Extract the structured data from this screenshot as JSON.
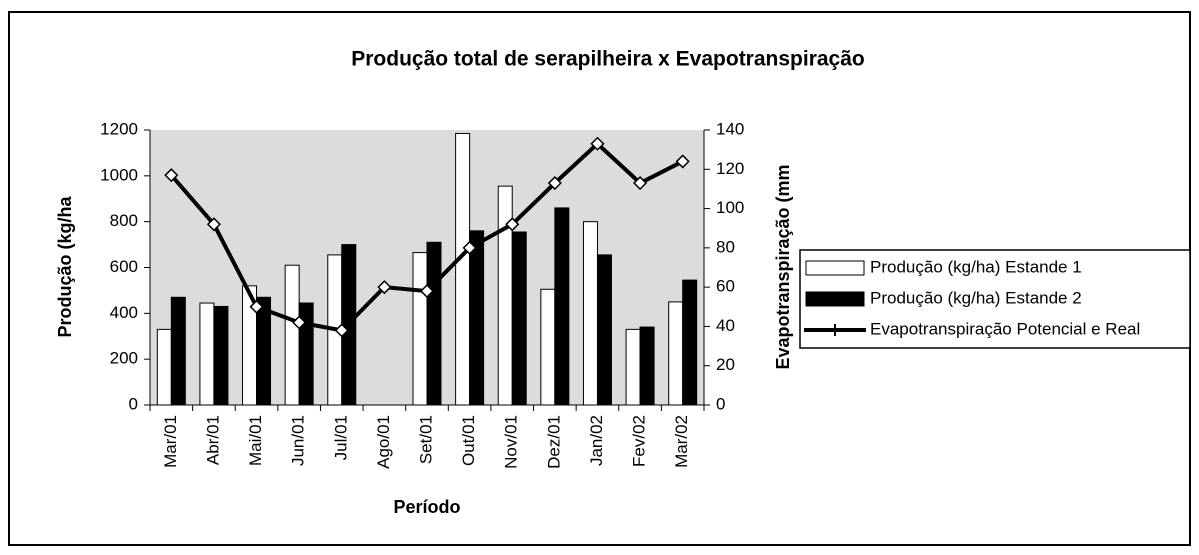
{
  "chart_data": {
    "type": "bar_line",
    "title": "Produção total de serapilheira x Evapotranspiração",
    "x_label": "Período",
    "y_label": "Produção (kg/ha",
    "y2_label": "Evapotranspiração (mm",
    "categories": [
      "Mar/01",
      "Abr/01",
      "Mai/01",
      "Jun/01",
      "Jul/01",
      "Ago/01",
      "Set/01",
      "Out/01",
      "Nov/01",
      "Dez/01",
      "Jan/02",
      "Fev/02",
      "Mar/02"
    ],
    "series": [
      {
        "name": "Produção (kg/ha) Estande 1",
        "color": "#ffffff",
        "values": [
          330,
          445,
          520,
          610,
          655,
          null,
          665,
          1185,
          955,
          505,
          800,
          330,
          450
        ]
      },
      {
        "name": "Produção (kg/ha) Estande 2",
        "color": "#000000",
        "values": [
          470,
          430,
          470,
          445,
          700,
          null,
          710,
          760,
          755,
          860,
          655,
          340,
          545
        ]
      },
      {
        "name": "Evapotranspiração Potencial e Real",
        "color": "#000000",
        "axis": "y2",
        "values": [
          117,
          92,
          50,
          42,
          38,
          60,
          58,
          80,
          92,
          113,
          133,
          113,
          124
        ]
      }
    ],
    "ylim": [
      0,
      1200
    ],
    "yticks": [
      0,
      200,
      400,
      600,
      800,
      1000,
      1200
    ],
    "y2lim": [
      0,
      140
    ],
    "y2ticks": [
      0,
      20,
      40,
      60,
      80,
      100,
      120,
      140
    ],
    "plot_background": "#dcdcdc"
  }
}
